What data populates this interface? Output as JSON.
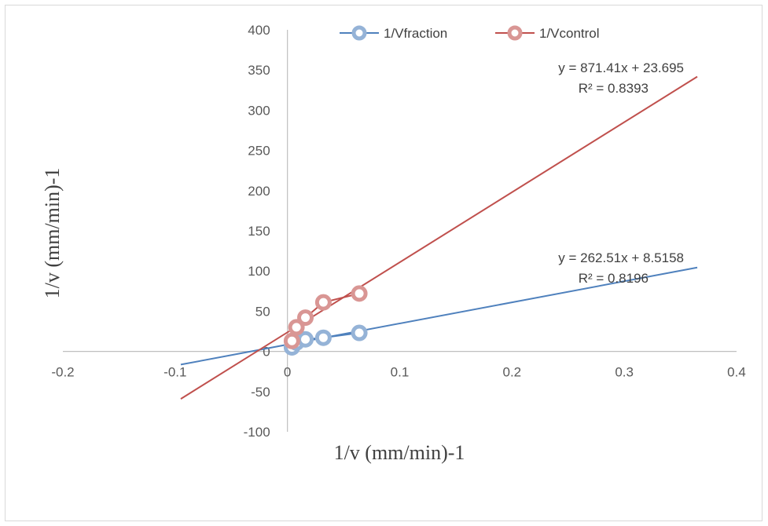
{
  "chart_data": {
    "type": "scatter",
    "xlabel": "1/v (mm/min)-1",
    "ylabel": "1/v (mm/min)-1",
    "xlim": [
      -0.2,
      0.4
    ],
    "ylim": [
      -100,
      400
    ],
    "x_ticks": [
      -0.2,
      -0.1,
      0,
      0.1,
      0.2,
      0.3,
      0.4
    ],
    "x_tick_labels": [
      "-0.2",
      "-0.1",
      "0",
      "0.1",
      "0.2",
      "0.3",
      "0.4"
    ],
    "y_ticks": [
      -100,
      -50,
      0,
      50,
      100,
      150,
      200,
      250,
      300,
      350,
      400
    ],
    "y_tick_labels": [
      "-100",
      "-50",
      "0",
      "50",
      "100",
      "150",
      "200",
      "250",
      "300",
      "350",
      "400"
    ],
    "legend": "top",
    "grid": false,
    "series": [
      {
        "name": "1/Vfraction",
        "color": "#4f81bd",
        "marker_color": "#95b3d7",
        "points": [
          [
            0.004,
            5
          ],
          [
            0.008,
            11
          ],
          [
            0.016,
            15
          ],
          [
            0.032,
            17
          ],
          [
            0.064,
            23
          ]
        ],
        "trendline": {
          "slope": 262.51,
          "intercept": 8.5158,
          "x_range": [
            -0.095,
            0.365
          ],
          "equation": "y = 262.51x + 8.5158",
          "r2": "R² = 0.8196"
        }
      },
      {
        "name": "1/Vcontrol",
        "color": "#c0504d",
        "marker_color": "#d99694",
        "points": [
          [
            0.004,
            13
          ],
          [
            0.008,
            30
          ],
          [
            0.016,
            42
          ],
          [
            0.032,
            61
          ],
          [
            0.064,
            72
          ]
        ],
        "trendline": {
          "slope": 871.41,
          "intercept": 23.695,
          "x_range": [
            -0.095,
            0.365
          ],
          "equation": "y = 871.41x + 23.695",
          "r2": "R² = 0.8393"
        }
      }
    ]
  }
}
